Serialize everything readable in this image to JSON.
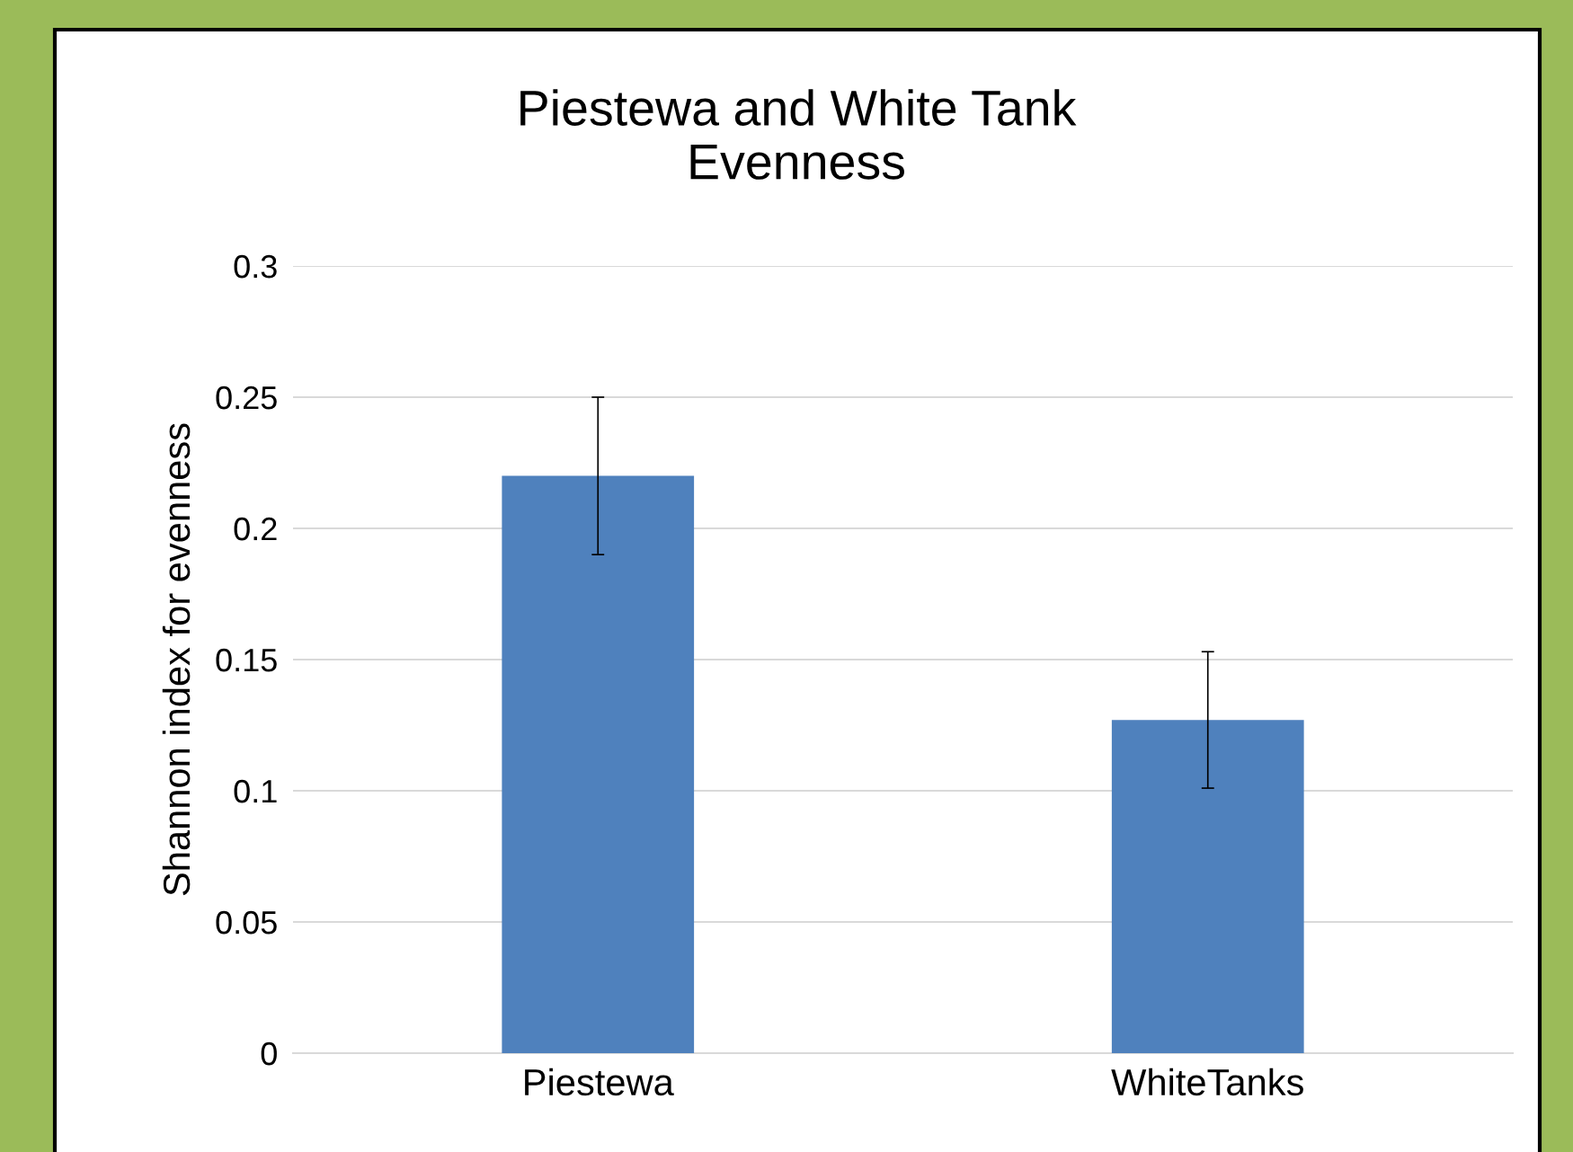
{
  "chart_data": {
    "type": "bar",
    "title": "Piestewa and White Tank\nEvenness",
    "ylabel": "Shannon index for evenness",
    "categories": [
      "Piestewa",
      "WhiteTanks"
    ],
    "values": [
      0.22,
      0.127
    ],
    "errors": [
      0.03,
      0.026
    ],
    "color": "#4f81bd",
    "ylim": [
      0,
      0.3
    ],
    "yticks": [
      0,
      0.05,
      0.1,
      0.15,
      0.2,
      0.25,
      0.3
    ],
    "grid": "y",
    "legend": false
  }
}
